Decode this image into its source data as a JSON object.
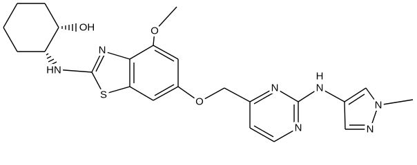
{
  "atoms": [
    {
      "label": "OH"
    },
    {
      "label": "HN"
    },
    {
      "label": "N"
    },
    {
      "label": "S"
    },
    {
      "label": "O"
    },
    {
      "label": "O"
    },
    {
      "label": "N"
    },
    {
      "label": "N"
    },
    {
      "label": "H"
    },
    {
      "label": "N"
    },
    {
      "label": "N"
    },
    {
      "label": "N"
    }
  ]
}
